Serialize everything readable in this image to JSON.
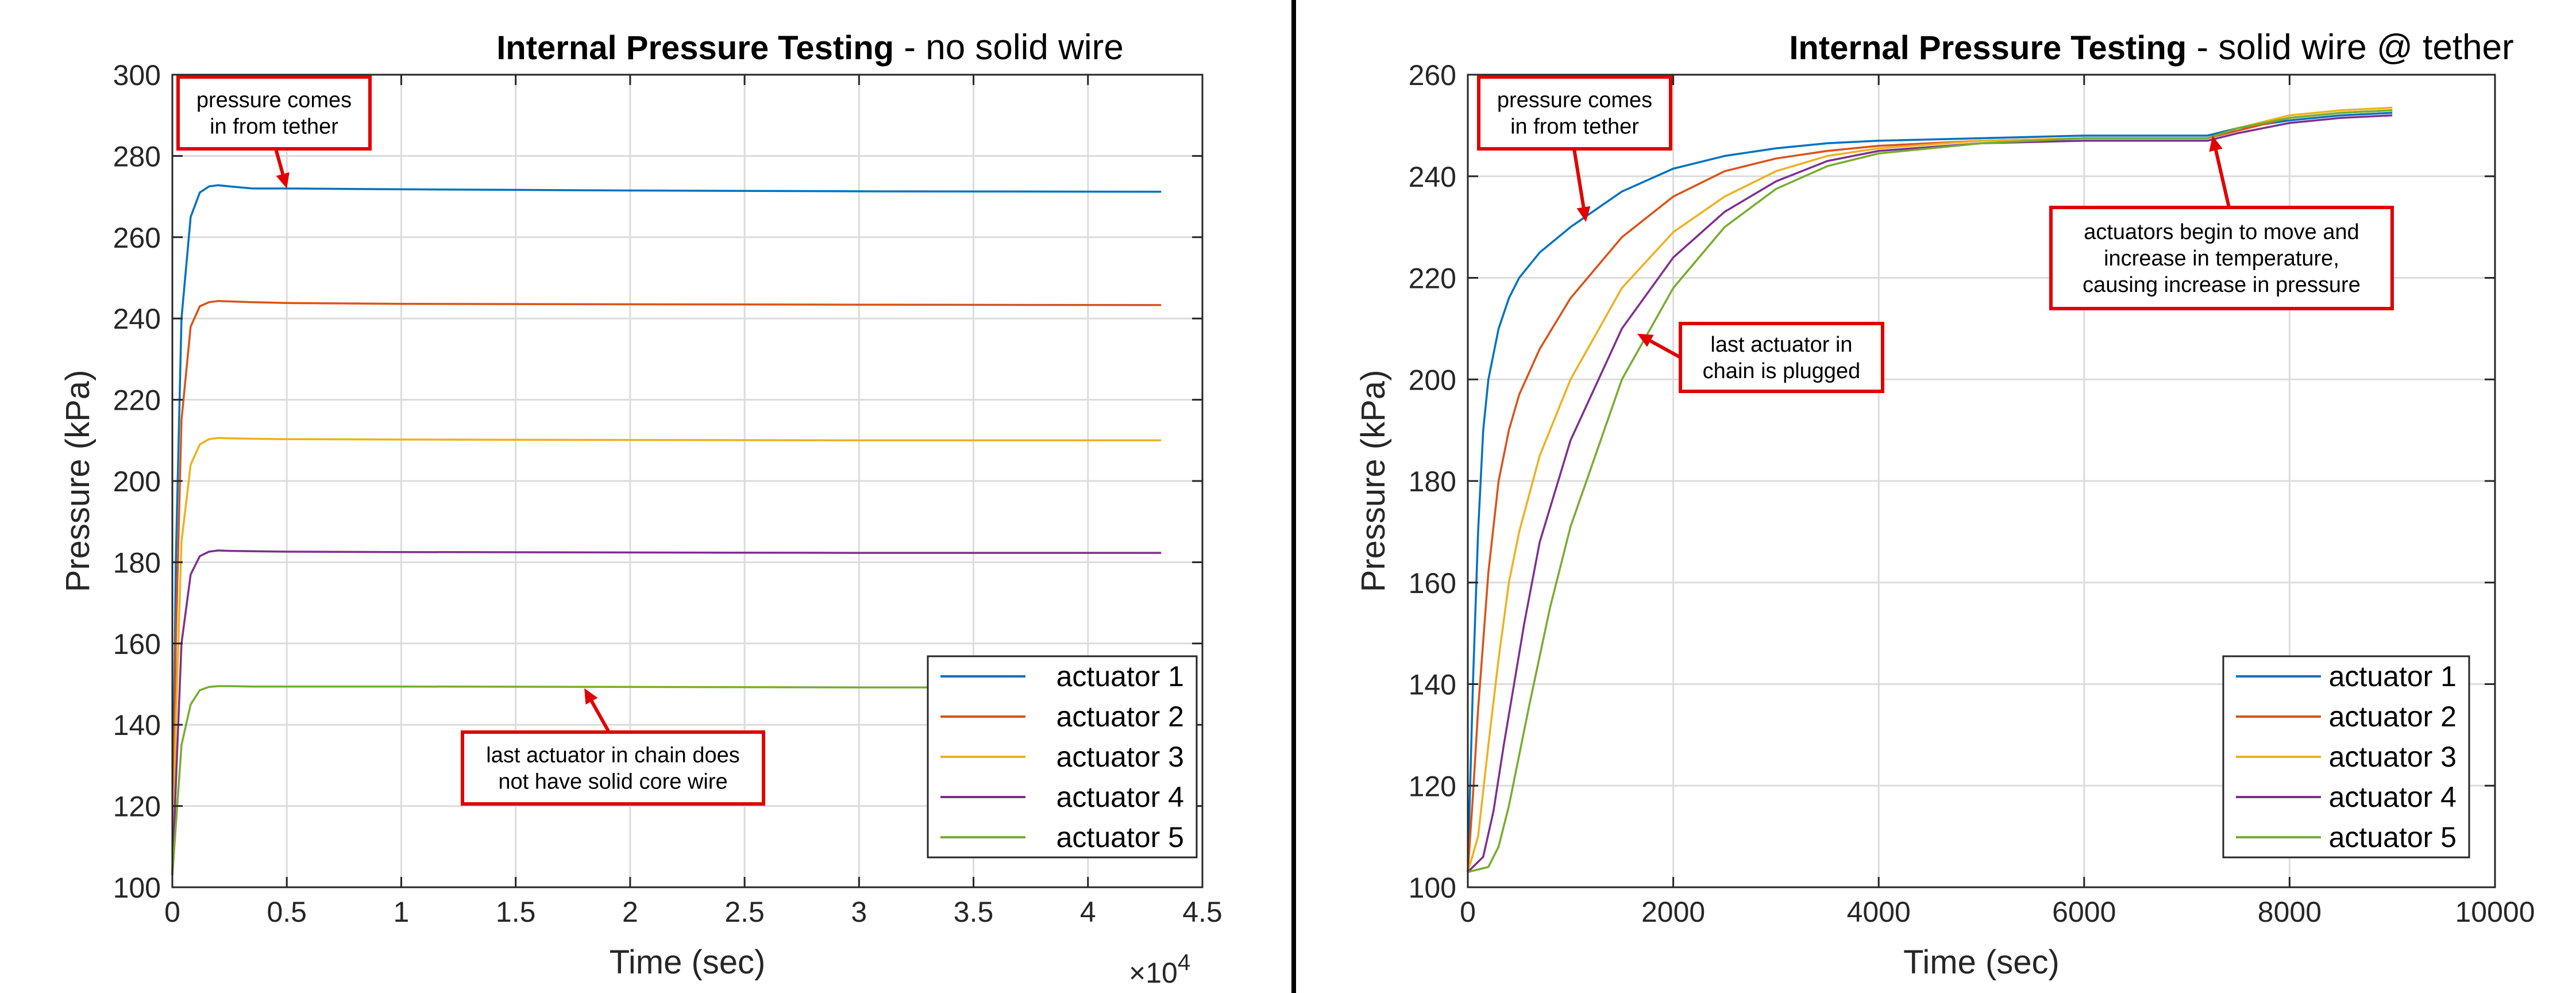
{
  "chart_data": [
    {
      "type": "line",
      "title_bold": "Internal Pressure Testing",
      "title_rest": " - no solid wire",
      "xlabel": "Time (sec)",
      "ylabel": "Pressure (kPa)",
      "xlim": [
        0,
        45000
      ],
      "ylim": [
        100,
        300
      ],
      "xticks": [
        0,
        5000,
        10000,
        15000,
        20000,
        25000,
        30000,
        35000,
        40000,
        45000
      ],
      "xtick_labels": [
        "0",
        "0.5",
        "1",
        "1.5",
        "2",
        "2.5",
        "3",
        "3.5",
        "4",
        "4.5"
      ],
      "yticks": [
        100,
        120,
        140,
        160,
        180,
        200,
        220,
        240,
        260,
        280,
        300
      ],
      "ytick_labels": [
        "100",
        "120",
        "140",
        "160",
        "180",
        "200",
        "220",
        "240",
        "260",
        "280",
        "300"
      ],
      "exponent_base": "×10",
      "exponent_power": "4",
      "grid": true,
      "legend_position": "bottom-right",
      "series": [
        {
          "name": "actuator 1",
          "color": "#0072BD",
          "x": [
            0,
            150,
            400,
            800,
            1200,
            1600,
            2000,
            2500,
            3500,
            5000,
            10000,
            20000,
            30000,
            43200
          ],
          "y": [
            103,
            180,
            240,
            265,
            271,
            272.5,
            272.8,
            272.5,
            272,
            272,
            271.8,
            271.5,
            271.3,
            271.2
          ]
        },
        {
          "name": "actuator 2",
          "color": "#D95319",
          "x": [
            0,
            150,
            400,
            800,
            1200,
            1600,
            2000,
            2500,
            3500,
            5000,
            10000,
            20000,
            30000,
            43200
          ],
          "y": [
            103,
            160,
            215,
            238,
            243,
            244,
            244.3,
            244.2,
            244,
            243.8,
            243.6,
            243.5,
            243.4,
            243.3
          ]
        },
        {
          "name": "actuator 3",
          "color": "#EDB120",
          "x": [
            0,
            150,
            400,
            800,
            1200,
            1600,
            2000,
            2500,
            3500,
            5000,
            10000,
            20000,
            30000,
            43200
          ],
          "y": [
            103,
            140,
            185,
            204,
            209,
            210.3,
            210.6,
            210.5,
            210.4,
            210.3,
            210.2,
            210.1,
            210,
            210
          ]
        },
        {
          "name": "actuator 4",
          "color": "#7E2F8E",
          "x": [
            0,
            150,
            400,
            800,
            1200,
            1600,
            2000,
            2500,
            3500,
            5000,
            10000,
            20000,
            30000,
            43200
          ],
          "y": [
            103,
            125,
            160,
            177,
            181.5,
            182.6,
            182.9,
            182.8,
            182.7,
            182.6,
            182.5,
            182.4,
            182.3,
            182.3
          ]
        },
        {
          "name": "actuator 5",
          "color": "#77AC30",
          "x": [
            0,
            150,
            400,
            800,
            1200,
            1600,
            2000,
            2500,
            3500,
            5000,
            10000,
            20000,
            30000,
            43200
          ],
          "y": [
            103,
            115,
            135,
            145,
            148.5,
            149.3,
            149.5,
            149.5,
            149.4,
            149.4,
            149.4,
            149.3,
            149.2,
            149.2
          ]
        }
      ],
      "annotations": [
        {
          "lines": [
            "pressure comes",
            "in from tether"
          ],
          "arrow_to": [
            5000,
            272
          ]
        },
        {
          "lines": [
            "last actuator in chain does",
            "not have solid core wire"
          ],
          "arrow_to": [
            18000,
            149
          ]
        }
      ]
    },
    {
      "type": "line",
      "title_bold": "Internal Pressure Testing",
      "title_rest": " - solid wire @ tether",
      "xlabel": "Time (sec)",
      "ylabel": "Pressure (kPa)",
      "xlim": [
        0,
        10000
      ],
      "ylim": [
        100,
        260
      ],
      "xticks": [
        0,
        2000,
        4000,
        6000,
        8000,
        10000
      ],
      "xtick_labels": [
        "0",
        "2000",
        "4000",
        "6000",
        "8000",
        "10000"
      ],
      "yticks": [
        100,
        120,
        140,
        160,
        180,
        200,
        220,
        240,
        260
      ],
      "ytick_labels": [
        "100",
        "120",
        "140",
        "160",
        "180",
        "200",
        "220",
        "240",
        "260"
      ],
      "grid": true,
      "legend_position": "bottom-right",
      "series": [
        {
          "name": "actuator 1",
          "color": "#0072BD",
          "x": [
            0,
            50,
            100,
            150,
            200,
            300,
            400,
            500,
            700,
            1000,
            1500,
            2000,
            2500,
            3000,
            3500,
            4000,
            5000,
            6000,
            7000,
            7200,
            7500,
            8000,
            8500,
            9000
          ],
          "y": [
            103,
            140,
            170,
            190,
            200,
            210,
            216,
            220,
            225,
            230,
            237,
            241.5,
            244,
            245.5,
            246.5,
            247,
            247.5,
            248,
            248,
            248,
            249.5,
            251,
            252,
            252.5
          ]
        },
        {
          "name": "actuator 2",
          "color": "#D95319",
          "x": [
            0,
            50,
            100,
            200,
            300,
            400,
            500,
            700,
            1000,
            1500,
            2000,
            2500,
            3000,
            3500,
            4000,
            5000,
            6000,
            7000,
            7200,
            7500,
            8000,
            8500,
            9000
          ],
          "y": [
            103,
            118,
            135,
            162,
            180,
            190,
            197,
            206,
            216,
            228,
            236,
            241,
            243.5,
            245,
            246,
            247,
            247.5,
            247.5,
            247.5,
            249,
            251.5,
            252.5,
            253
          ]
        },
        {
          "name": "actuator 3",
          "color": "#EDB120",
          "x": [
            0,
            100,
            200,
            300,
            400,
            500,
            700,
            1000,
            1500,
            2000,
            2500,
            3000,
            3500,
            4000,
            5000,
            6000,
            7000,
            7200,
            7500,
            8000,
            8500,
            9000
          ],
          "y": [
            103,
            110,
            128,
            145,
            160,
            170,
            185,
            200,
            218,
            229,
            236,
            241,
            244,
            245.5,
            247,
            247.5,
            247.5,
            247.5,
            249.5,
            252,
            253,
            253.5
          ]
        },
        {
          "name": "actuator 4",
          "color": "#7E2F8E",
          "x": [
            0,
            150,
            250,
            350,
            450,
            550,
            700,
            1000,
            1500,
            2000,
            2500,
            3000,
            3500,
            4000,
            5000,
            6000,
            7000,
            7200,
            7500,
            8000,
            8500,
            9000
          ],
          "y": [
            103,
            106,
            115,
            128,
            140,
            152,
            168,
            188,
            210,
            224,
            233,
            239,
            243,
            245,
            246.5,
            247,
            247,
            247,
            248.5,
            250.5,
            251.5,
            252
          ]
        },
        {
          "name": "actuator 5",
          "color": "#77AC30",
          "x": [
            0,
            200,
            300,
            400,
            500,
            600,
            800,
            1000,
            1500,
            2000,
            2500,
            3000,
            3500,
            4000,
            5000,
            6000,
            7000,
            7200,
            7500,
            8000,
            8500,
            9000
          ],
          "y": [
            103,
            104,
            108,
            116,
            126,
            136,
            155,
            171,
            200,
            218,
            230,
            237.5,
            242,
            244.5,
            246.5,
            247.5,
            247.5,
            247.5,
            249.5,
            251.5,
            252.5,
            253
          ]
        }
      ],
      "annotations": [
        {
          "lines": [
            "pressure comes",
            "in from tether"
          ],
          "arrow_to": [
            1150,
            231
          ]
        },
        {
          "lines": [
            "last actuator in",
            "chain is plugged"
          ],
          "arrow_to": [
            1650,
            209
          ]
        },
        {
          "lines": [
            "actuators begin to move and",
            "increase in temperature,",
            "causing increase in pressure"
          ],
          "arrow_to": [
            7250,
            248
          ]
        }
      ]
    }
  ]
}
